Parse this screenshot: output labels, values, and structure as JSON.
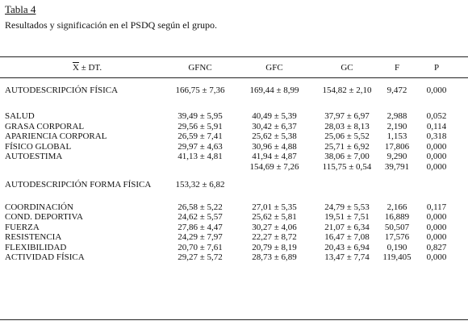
{
  "caption": {
    "table_label": "Tabla 4",
    "title": "Resultados y significación en el PSDQ según el grupo."
  },
  "header": {
    "stat_symbol": "X",
    "stat_rest": " ± DT.",
    "col_gfnc": "GFNC",
    "col_gfc": "GFC",
    "col_gc": "GC",
    "col_f": "F",
    "col_p": "P"
  },
  "rows": [
    {
      "label": "AUTODESCRIPCIÓN FÍSICA",
      "gfnc": "166,75 ± 7,36",
      "gfc": "169,44 ± 8,99",
      "gc": "154,82 ± 2,10",
      "f": "9,472",
      "p": "0,000"
    },
    {
      "label": "SALUD",
      "gfnc": "39,49 ± 5,95",
      "gfc": "40,49 ± 5,39",
      "gc": "37,97 ± 6,97",
      "f": "2,988",
      "p": "0,052"
    },
    {
      "label": "GRASA CORPORAL",
      "gfnc": "29,56 ± 5,91",
      "gfc": "30,42 ± 6,37",
      "gc": "28,03 ± 8,13",
      "f": "2,190",
      "p": "0,114"
    },
    {
      "label": "APARIENCIA CORPORAL",
      "gfnc": "26,59 ± 7,41",
      "gfc": "25,62 ± 5,38",
      "gc": "25,06 ± 5,52",
      "f": "1,153",
      "p": "0,318"
    },
    {
      "label": "FÍSICO GLOBAL",
      "gfnc": "29,97 ± 4,63",
      "gfc": "30,96 ± 4,88",
      "gc": "25,71 ± 6,92",
      "f": "17,806",
      "p": "0,000"
    },
    {
      "label": "AUTOESTIMA",
      "gfnc": "41,13 ± 4,81",
      "gfc": "41,94 ± 4,87",
      "gc": "38,06 ± 7,00",
      "f": "9,290",
      "p": "0,000"
    },
    {
      "label": "",
      "gfnc": "",
      "gfc": "154,69 ± 7,26",
      "gc": "115,75 ± 0,54",
      "f": "39,791",
      "p": "0,000"
    },
    {
      "label": "AUTODESCRIPCIÓN FORMA FÍSICA",
      "gfnc": "153,32 ± 6,82",
      "gfc": "",
      "gc": "",
      "f": "",
      "p": ""
    },
    {
      "label": "COORDINACIÓN",
      "gfnc": "26,58 ± 5,22",
      "gfc": "27,01 ± 5,35",
      "gc": "24,79 ± 5,53",
      "f": "2,166",
      "p": "0,117"
    },
    {
      "label": "COND. DEPORTIVA",
      "gfnc": "24,62 ± 5,57",
      "gfc": "25,62 ± 5,81",
      "gc": "19,51 ± 7,51",
      "f": "16,889",
      "p": "0,000"
    },
    {
      "label": "FUERZA",
      "gfnc": "27,86 ± 4,47",
      "gfc": "30,27 ± 4,06",
      "gc": "21,07 ± 6,34",
      "f": "50,507",
      "p": "0,000"
    },
    {
      "label": "RESISTENCIA",
      "gfnc": "24,29 ± 7,97",
      "gfc": "22,27 ± 8,72",
      "gc": "16,47 ± 7,08",
      "f": "17,576",
      "p": "0,000"
    },
    {
      "label": "FLEXIBILIDAD",
      "gfnc": "20,70 ± 7,61",
      "gfc": "20,79 ± 8,19",
      "gc": "20,43 ± 6,94",
      "f": "0,190",
      "p": "0,827"
    },
    {
      "label": "ACTIVIDAD FÍSICA",
      "gfnc": "29,27 ± 5,72",
      "gfc": "28,73 ± 6,89",
      "gc": "13,47 ± 7,74",
      "f": "119,405",
      "p": "0,000"
    }
  ]
}
